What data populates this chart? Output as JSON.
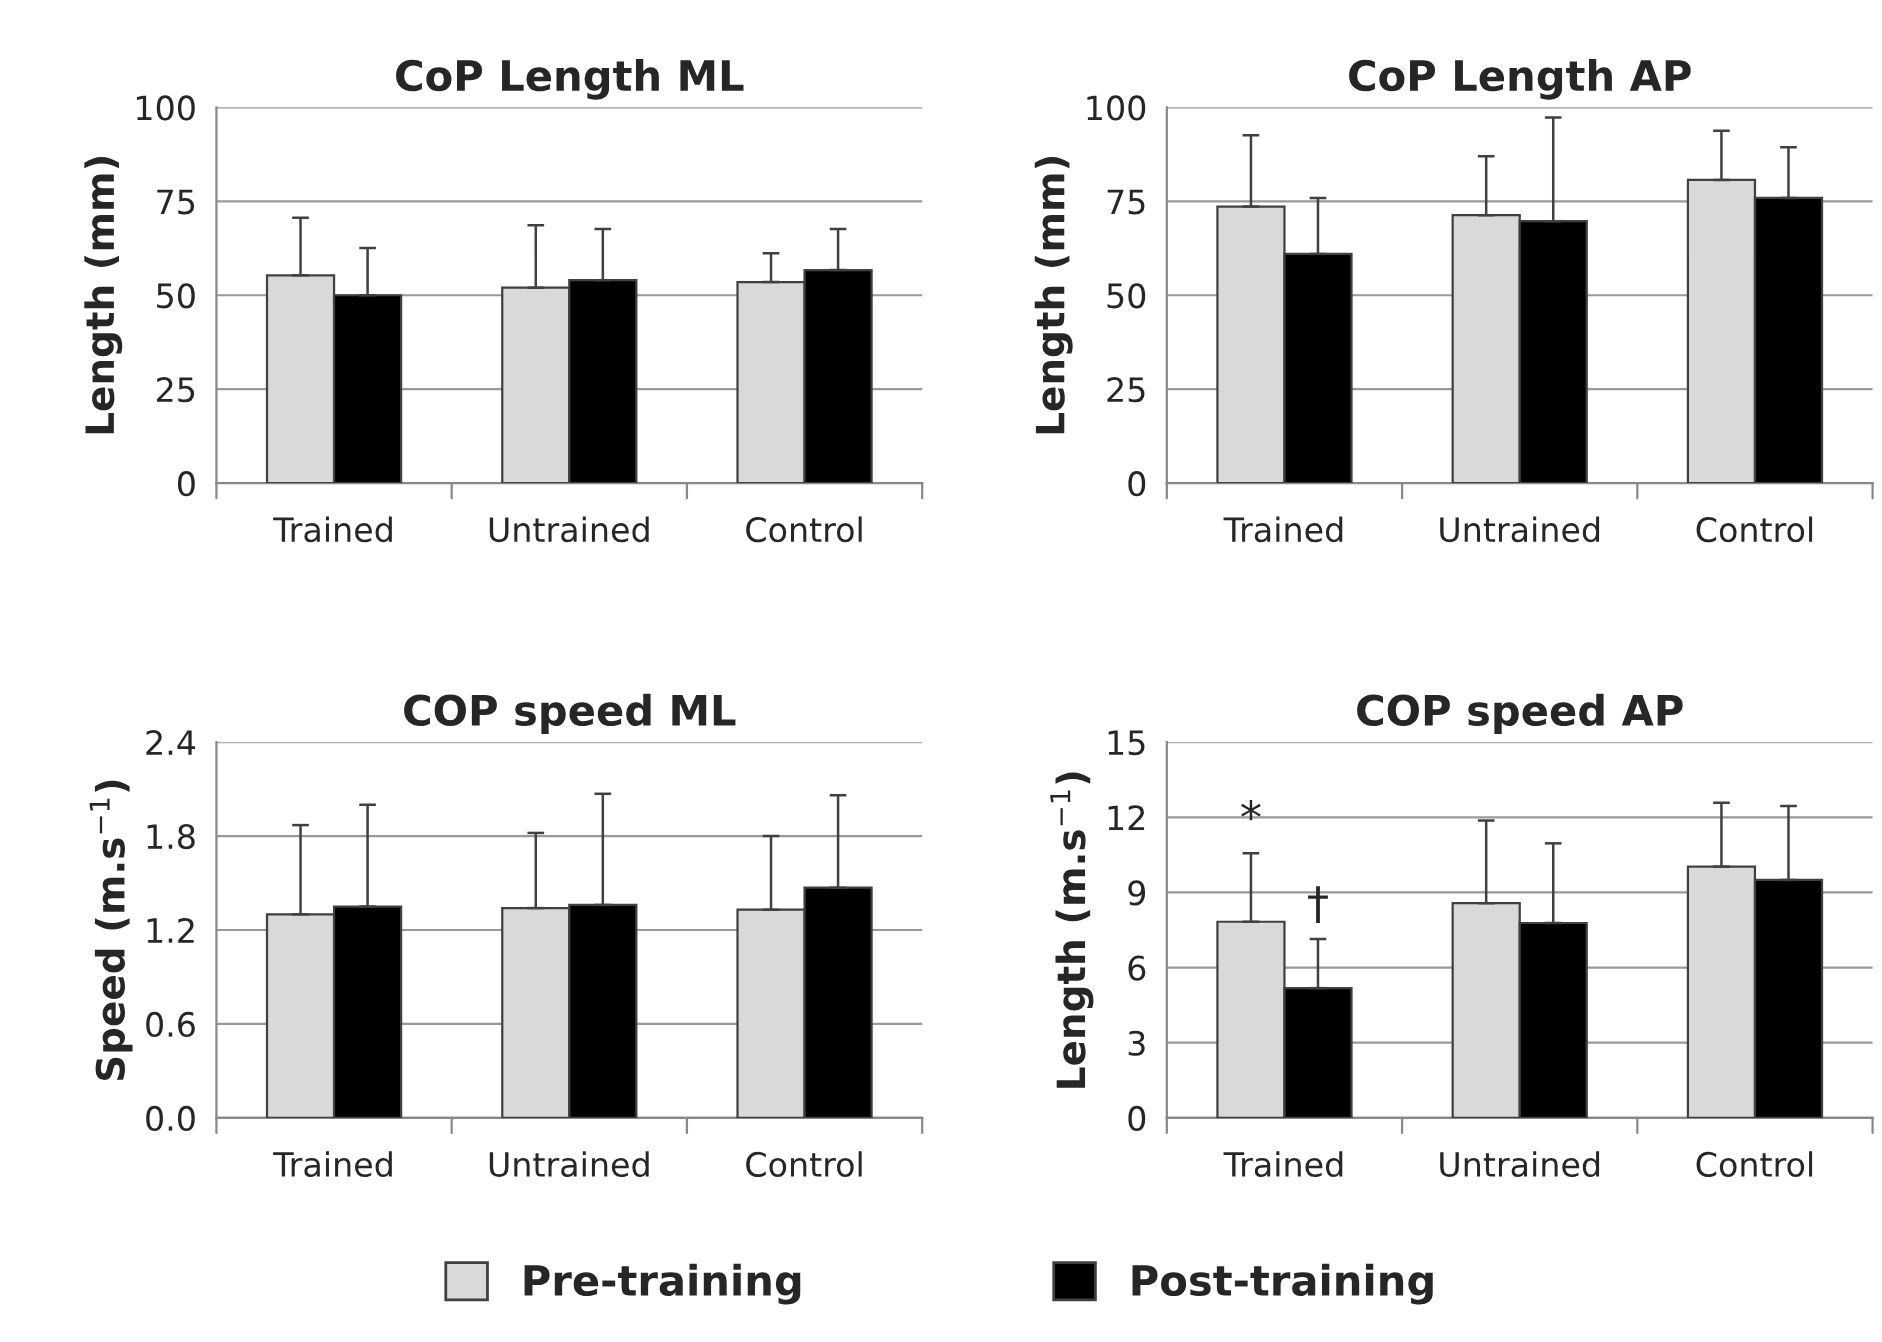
{
  "chart_data": [
    {
      "type": "bar",
      "title": "CoP Length ML",
      "ylabel": "Length (mm)",
      "categories": [
        "Trained",
        "Untrained",
        "Control"
      ],
      "ylim": [
        0,
        100
      ],
      "yticks": [
        0,
        25,
        50,
        75,
        100
      ],
      "grid": "y",
      "legend": "bottom",
      "series": [
        {
          "color": "#d9d9d9",
          "values": [
            55.3,
            52,
            53.5
          ],
          "errors": [
            [
              55.3,
              70.6
            ],
            [
              52,
              68.6
            ],
            [
              53.5,
              61.2
            ]
          ]
        },
        {
          "color": "#000000",
          "values": [
            50,
            54,
            56.7
          ],
          "errors": [
            [
              50,
              62.6
            ],
            [
              54,
              67.6
            ],
            [
              56.7,
              67.6
            ]
          ]
        }
      ]
    },
    {
      "type": "bar",
      "title": "CoP Length AP",
      "ylabel": "Length (mm)",
      "categories": [
        "Trained",
        "Untrained",
        "Control"
      ],
      "ylim": [
        0,
        100
      ],
      "yticks": [
        0,
        25,
        50,
        75,
        100
      ],
      "grid": "y",
      "legend": "bottom",
      "series": [
        {
          "color": "#d9d9d9",
          "values": [
            73.6,
            71.3,
            80.7
          ],
          "errors": [
            [
              73.6,
              92.6
            ],
            [
              71.3,
              87
            ],
            [
              80.7,
              93.8
            ]
          ]
        },
        {
          "color": "#000000",
          "values": [
            61,
            69.7,
            75.9
          ],
          "errors": [
            [
              61,
              75.9
            ],
            [
              69.7,
              97.3
            ],
            [
              75.9,
              89.4
            ]
          ]
        }
      ]
    },
    {
      "type": "bar",
      "title": "COP speed ML",
      "ylabel": "Speed (m.s$^{−1}$)",
      "categories": [
        "Trained",
        "Untrained",
        "Control"
      ],
      "ylim": [
        0,
        2.4
      ],
      "yticks": [
        {
          "value": 0,
          "label": "0.0"
        },
        0.6,
        1.2,
        1.8,
        2.4
      ],
      "grid": "y",
      "legend": "bottom",
      "series": [
        {
          "color": "#d9d9d9",
          "values": [
            1.3,
            1.34,
            1.33
          ],
          "errors": [
            [
              1.3,
              1.87
            ],
            [
              1.34,
              1.82
            ],
            [
              1.33,
              1.8
            ]
          ]
        },
        {
          "color": "#000000",
          "values": [
            1.35,
            1.36,
            1.47
          ],
          "errors": [
            [
              1.35,
              2.0
            ],
            [
              1.36,
              2.07
            ],
            [
              1.47,
              2.06
            ]
          ]
        }
      ]
    },
    {
      "type": "bar",
      "title": "COP speed AP",
      "ylabel": "Length (m.s$^{−1}$)",
      "categories": [
        "Trained",
        "Untrained",
        "Control"
      ],
      "ylim": [
        0,
        15
      ],
      "yticks": [
        0,
        3,
        6,
        9,
        12,
        15
      ],
      "grid": "y",
      "legend": "bottom",
      "annotations": [
        "*",
        "†"
      ],
      "series": [
        {
          "name": "Pre-training",
          "color": "#d9d9d9",
          "values": [
            7.83,
            8.57,
            10.03
          ],
          "errors": [
            [
              7.83,
              10.56
            ],
            [
              8.57,
              11.87
            ],
            [
              10.03,
              12.58
            ]
          ]
        },
        {
          "name": "Post-training",
          "color": "#000000",
          "values": [
            5.18,
            7.78,
            9.5
          ],
          "errors": [
            [
              5.18,
              7.14
            ],
            [
              7.78,
              10.96
            ],
            [
              9.5,
              12.45
            ]
          ]
        }
      ]
    }
  ]
}
